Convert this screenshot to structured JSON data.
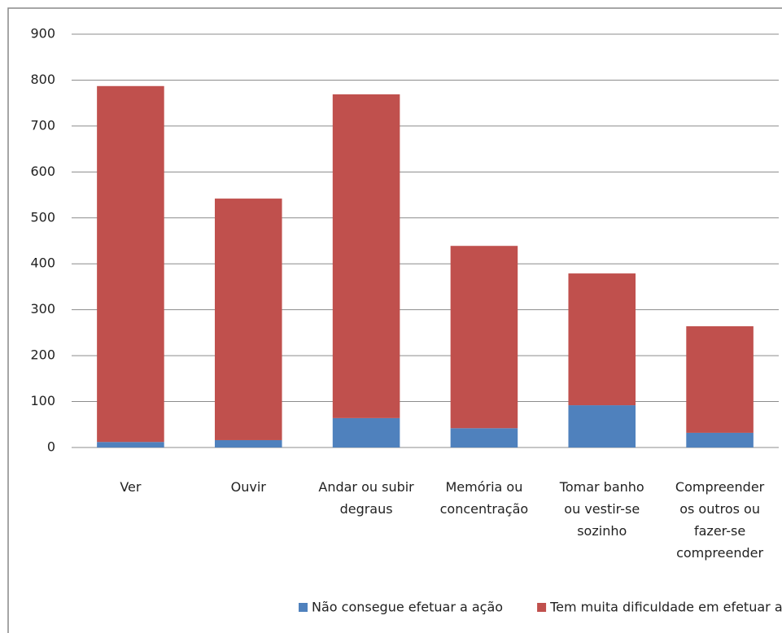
{
  "chart_data": {
    "type": "stacked_bar",
    "categories": [
      "Ver",
      "Ouvir",
      "Andar ou subir degraus",
      "Memória ou concentração",
      "Tomar banho ou vestir-se sozinho",
      "Compreender os outros ou fazer-se compreender"
    ],
    "series": [
      {
        "name": "Não consegue efetuar a ação",
        "color": "#4f81bd",
        "values": [
          12,
          16,
          64,
          42,
          92,
          32
        ]
      },
      {
        "name": "Tem muita dificuldade em efetuar a ação",
        "color": "#c0504d",
        "values": [
          775,
          526,
          705,
          397,
          287,
          232
        ]
      }
    ],
    "ylim": [
      0,
      900
    ],
    "yticks": [
      0,
      100,
      200,
      300,
      400,
      500,
      600,
      700,
      800,
      900
    ],
    "grid": true,
    "legend": "bottom"
  }
}
